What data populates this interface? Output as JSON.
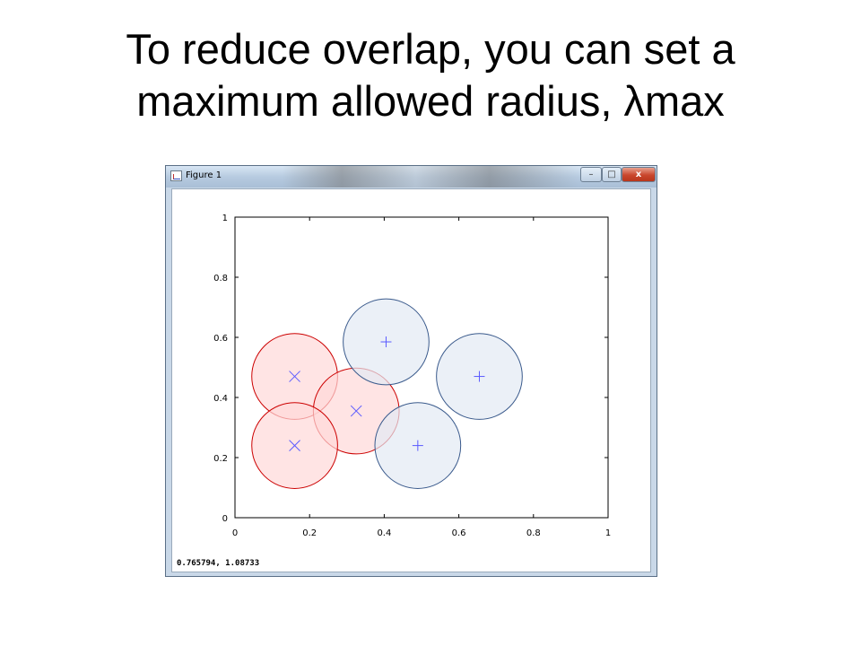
{
  "slide": {
    "title_line1": "To reduce overlap, you can set a",
    "title_line2": "maximum allowed radius, λmax"
  },
  "window": {
    "title": "Figure 1",
    "buttons": {
      "minimize": "–",
      "maximize": "□",
      "close": "x"
    },
    "status_coords": "0.765794,  1.08733"
  },
  "chart_data": {
    "type": "scatter",
    "xlim": [
      0,
      1
    ],
    "ylim": [
      0,
      1
    ],
    "x_ticks": [
      "0",
      "0.2",
      "0.4",
      "0.6",
      "0.8",
      "1"
    ],
    "y_ticks": [
      "0",
      "0.2",
      "0.4",
      "0.6",
      "0.8",
      "1"
    ],
    "grid": false,
    "series": [
      {
        "marker": "x",
        "marker_color": "#5a5aff",
        "circle_stroke": "#cc0000",
        "circle_fill": "#ffd9d9",
        "radius": 0.115,
        "points": [
          {
            "x": 0.16,
            "y": 0.47
          },
          {
            "x": 0.325,
            "y": 0.355
          },
          {
            "x": 0.16,
            "y": 0.24
          }
        ]
      },
      {
        "marker": "+",
        "marker_color": "#5a5aff",
        "circle_stroke": "#3a5a8c",
        "circle_fill": "#e3e9f3",
        "radius": 0.115,
        "points": [
          {
            "x": 0.405,
            "y": 0.585
          },
          {
            "x": 0.655,
            "y": 0.47
          },
          {
            "x": 0.49,
            "y": 0.24
          }
        ]
      }
    ]
  }
}
